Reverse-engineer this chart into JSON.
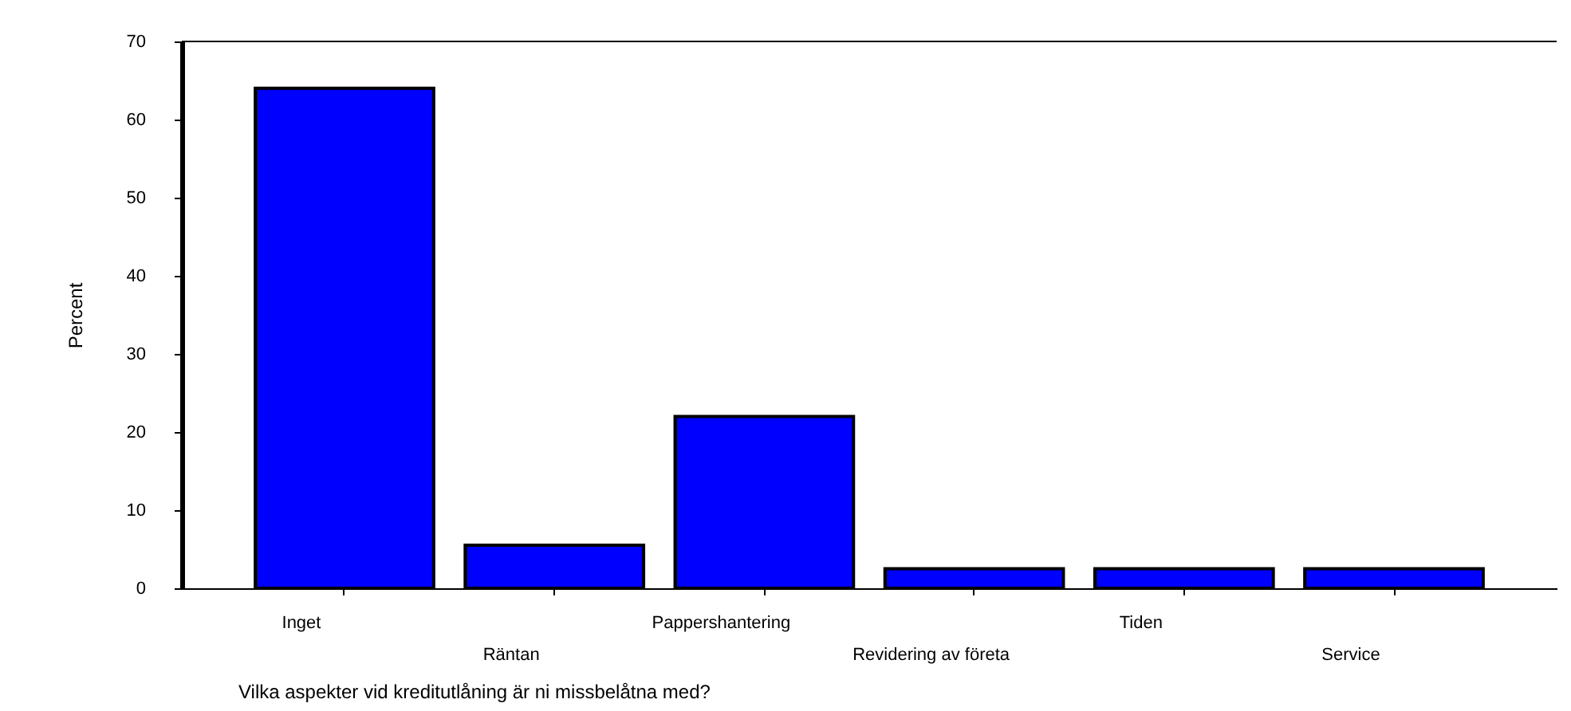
{
  "chart_data": {
    "type": "bar",
    "categories": [
      "Inget",
      "Räntan",
      "Pappershantering",
      "Revidering av företa",
      "Tiden",
      "Service"
    ],
    "values": [
      64,
      5.5,
      22,
      2.5,
      2.5,
      2.5
    ],
    "color": "#0000ff",
    "xlabel": "Vilka aspekter vid kreditutlåning är ni missbelåtna med?",
    "ylabel": "Percent",
    "ylim": [
      0,
      70
    ],
    "yticks": [
      0,
      10,
      20,
      30,
      40,
      50,
      60,
      70
    ],
    "grid": false
  }
}
